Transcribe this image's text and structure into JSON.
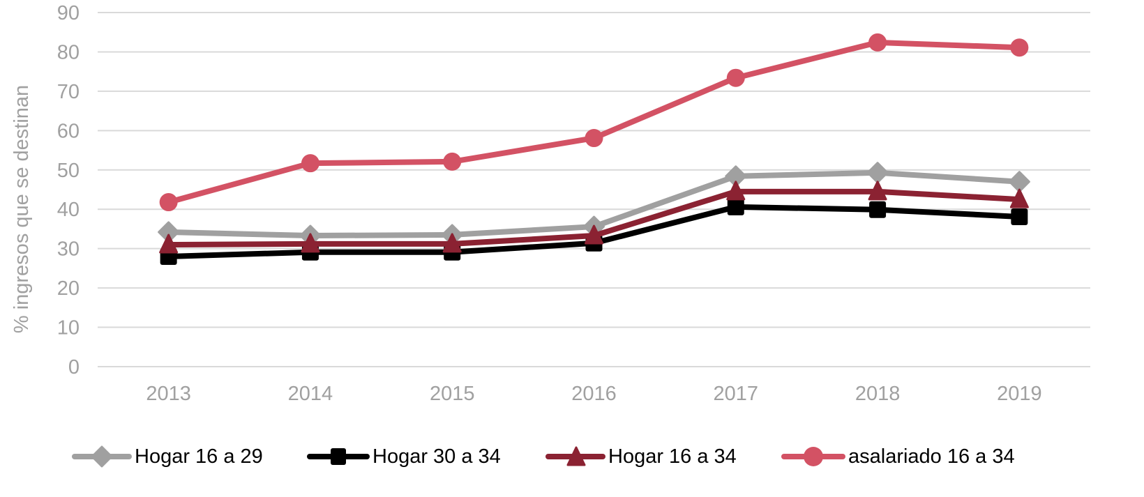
{
  "chart_data": {
    "type": "line",
    "title": "",
    "xlabel": "",
    "ylabel": "% ingresos que se destinan",
    "ylim": [
      0,
      90
    ],
    "yticks": [
      0,
      10,
      20,
      30,
      40,
      50,
      60,
      70,
      80,
      90
    ],
    "grid": true,
    "legend_position": "bottom",
    "categories": [
      "2013",
      "2014",
      "2015",
      "2016",
      "2017",
      "2018",
      "2019"
    ],
    "series": [
      {
        "name": "Hogar 16 a 29",
        "color": "#a0a0a0",
        "marker": "diamond",
        "values": [
          34.2,
          33.3,
          33.5,
          35.6,
          48.4,
          49.3,
          47.0
        ]
      },
      {
        "name": "Hogar 30 a 34",
        "color": "#000000",
        "marker": "square",
        "values": [
          28.0,
          29.1,
          29.1,
          31.4,
          40.6,
          39.9,
          38.1
        ]
      },
      {
        "name": "Hogar 16 a 34",
        "color": "#8b2232",
        "marker": "triangle",
        "values": [
          31.0,
          31.2,
          31.2,
          33.3,
          44.5,
          44.5,
          42.5
        ]
      },
      {
        "name": "asalariado 16 a 34",
        "color": "#d35264",
        "marker": "circle",
        "values": [
          41.8,
          51.7,
          52.1,
          58.1,
          73.4,
          82.4,
          81.1
        ]
      }
    ]
  },
  "legend": {
    "items": [
      {
        "label": "Hogar 16 a 29"
      },
      {
        "label": "Hogar 30 a 34"
      },
      {
        "label": "Hogar 16 a 34"
      },
      {
        "label": "asalariado 16 a 34"
      }
    ]
  }
}
